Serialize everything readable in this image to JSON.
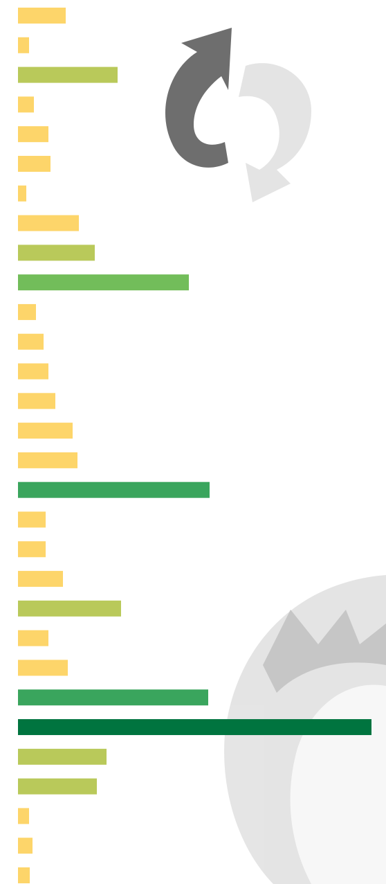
{
  "chart_data": {
    "type": "bar",
    "orientation": "horizontal",
    "values": [
      69,
      16,
      144,
      23,
      44,
      47,
      12,
      88,
      111,
      247,
      26,
      37,
      44,
      54,
      79,
      86,
      277,
      40,
      40,
      65,
      149,
      44,
      72,
      275,
      511,
      128,
      114,
      16,
      21,
      17
    ],
    "colors": [
      "#fdd56a",
      "#fdd56a",
      "#b9c95a",
      "#fdd56a",
      "#fdd56a",
      "#fdd56a",
      "#fdd56a",
      "#fdd56a",
      "#b9c95a",
      "#72bd5a",
      "#fdd56a",
      "#fdd56a",
      "#fdd56a",
      "#fdd56a",
      "#fdd56a",
      "#fdd56a",
      "#3aa55d",
      "#fdd56a",
      "#fdd56a",
      "#fdd56a",
      "#b9c95a",
      "#fdd56a",
      "#fdd56a",
      "#3aa55d",
      "#00743f",
      "#b9c95a",
      "#b9c95a",
      "#fdd56a",
      "#fdd56a",
      "#fdd56a"
    ],
    "xlim": [
      0,
      511
    ]
  }
}
